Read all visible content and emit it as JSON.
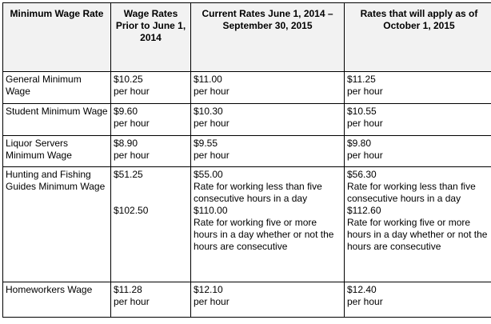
{
  "headers": [
    "Minimum Wage Rate",
    "Wage Rates Prior to June 1, 2014",
    "Current Rates June 1, 2014 – September 30, 2015",
    "Rates that will apply as of October 1, 2015"
  ],
  "rows": [
    {
      "category": "General Minimum Wage",
      "prior": [
        "$10.25",
        "per hour"
      ],
      "current": [
        "$11.00",
        "per hour"
      ],
      "future": [
        "$11.25",
        "per hour"
      ]
    },
    {
      "category": "Student Minimum Wage",
      "prior": [
        "$9.60",
        "per hour"
      ],
      "current": [
        "$10.30",
        "per hour"
      ],
      "future": [
        "$10.55",
        "per hour"
      ]
    },
    {
      "category": "Liquor Servers Minimum Wage",
      "prior": [
        "$8.90",
        "per hour"
      ],
      "current": [
        "$9.55",
        "per hour"
      ],
      "future": [
        "$9.80",
        "per hour"
      ]
    },
    {
      "category": "Hunting and Fishing Guides Minimum Wage",
      "prior": [
        "$51.25",
        "$102.50"
      ],
      "current": [
        "$55.00",
        "Rate for working less than five consecutive hours in a day",
        "$110.00",
        "Rate for working five or more hours in a day whether or not the hours are consecutive"
      ],
      "future": [
        "$56.30",
        "Rate for working less than five consecutive hours in a day",
        "$112.60",
        "Rate for working five or more hours in a day whether or not the hours are consecutive"
      ]
    },
    {
      "category": "Homeworkers Wage",
      "prior": [
        "$11.28",
        "per hour"
      ],
      "current": [
        "$12.10",
        "per hour"
      ],
      "future": [
        "$12.40",
        "per hour"
      ]
    }
  ]
}
